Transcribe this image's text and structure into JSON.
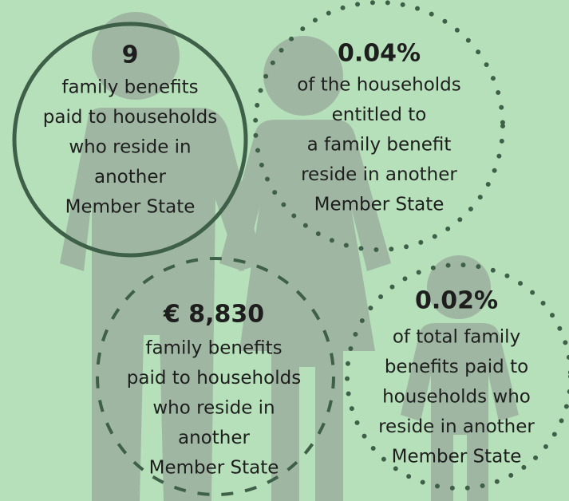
{
  "stats": [
    {
      "value": "9",
      "lines": [
        "family benefits",
        "paid to households",
        "who reside in",
        "another",
        "Member State"
      ]
    },
    {
      "value": "0.04%",
      "lines": [
        "of the households",
        "entitled to",
        "a family benefit",
        "reside in another",
        "Member State"
      ]
    },
    {
      "value": "€ 8,830",
      "lines": [
        "family benefits",
        "paid to households",
        "who reside in",
        "another",
        "Member State"
      ]
    },
    {
      "value": "0.02%",
      "lines": [
        "of total family",
        "benefits paid to",
        "households who",
        "reside in another",
        "Member State"
      ]
    }
  ]
}
